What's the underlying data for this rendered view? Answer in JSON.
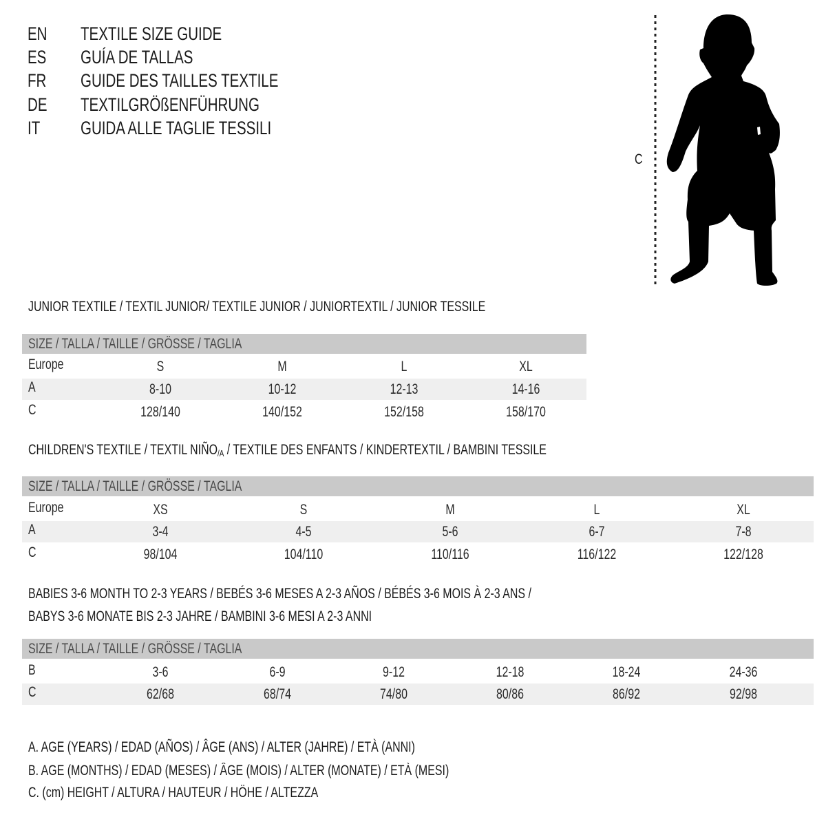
{
  "title_lines": [
    {
      "code": "EN",
      "text": "TEXTILE SIZE GUIDE"
    },
    {
      "code": "ES",
      "text": "GUÍA DE TALLAS"
    },
    {
      "code": "FR",
      "text": "GUIDE DES TAILLES TEXTILE"
    },
    {
      "code": "DE",
      "text": "TEXTILGRÖßENFÜHRUNG"
    },
    {
      "code": "IT",
      "text": "GUIDA ALLE TAGLIE TESSILI"
    }
  ],
  "figure": {
    "icon": "child-silhouette",
    "measure_label": "C"
  },
  "size_header": "SIZE / TALLA / TAILLE / GRÖSSE / TAGLIA",
  "junior": {
    "heading": "JUNIOR TEXTILE / TEXTIL JUNIOR/ TEXTILE JUNIOR / JUNIORTEXTIL / JUNIOR TESSILE",
    "rows": [
      {
        "label": "Europe",
        "values": [
          "S",
          "M",
          "L",
          "XL"
        ]
      },
      {
        "label": "A",
        "values": [
          "8-10",
          "10-12",
          "12-13",
          "14-16"
        ]
      },
      {
        "label": "C",
        "values": [
          "128/140",
          "140/152",
          "152/158",
          "158/170"
        ]
      }
    ]
  },
  "children": {
    "heading_main": "CHILDREN'S TEXTILE / TEXTIL NIÑO",
    "heading_sub": "/A",
    "heading_rest": " / TEXTILE DES ENFANTS / KINDERTEXTIL / BAMBINI TESSILE",
    "rows": [
      {
        "label": "Europe",
        "values": [
          "XS",
          "S",
          "M",
          "L",
          "XL"
        ]
      },
      {
        "label": "A",
        "values": [
          "3-4",
          "4-5",
          "5-6",
          "6-7",
          "7-8"
        ]
      },
      {
        "label": "C",
        "values": [
          "98/104",
          "104/110",
          "110/116",
          "116/122",
          "122/128"
        ]
      }
    ]
  },
  "babies": {
    "heading_line1": "BABIES 3-6 MONTH TO 2-3 YEARS / BEBÉS 3-6 MESES A 2-3 AÑOS / BÉBÉS 3-6 MOIS À 2-3 ANS /",
    "heading_line2": "BABYS 3-6 MONATE BIS 2-3 JAHRE / BAMBINI 3-6 MESI A 2-3 ANNI",
    "rows": [
      {
        "label": "B",
        "values": [
          "3-6",
          "6-9",
          "9-12",
          "12-18",
          "18-24",
          "24-36"
        ]
      },
      {
        "label": "C",
        "values": [
          "62/68",
          "68/74",
          "74/80",
          "80/86",
          "86/92",
          "92/98"
        ]
      }
    ]
  },
  "legend": [
    "A. AGE (YEARS) / EDAD (AÑOS) / ÂGE (ANS) / ALTER (JAHRE) / ETÀ (ANNI)",
    "B. AGE (MONTHS) / EDAD (MESES) / ÂGE (MOIS) / ALTER (MONATE) / ETÀ (MESI)",
    "C. (cm) HEIGHT / ALTURA / HAUTEUR / HÖHE / ALTEZZA"
  ],
  "colors": {
    "header_bar": "#c9c9c9",
    "row_band": "#efefef",
    "silhouette": "#000000"
  }
}
